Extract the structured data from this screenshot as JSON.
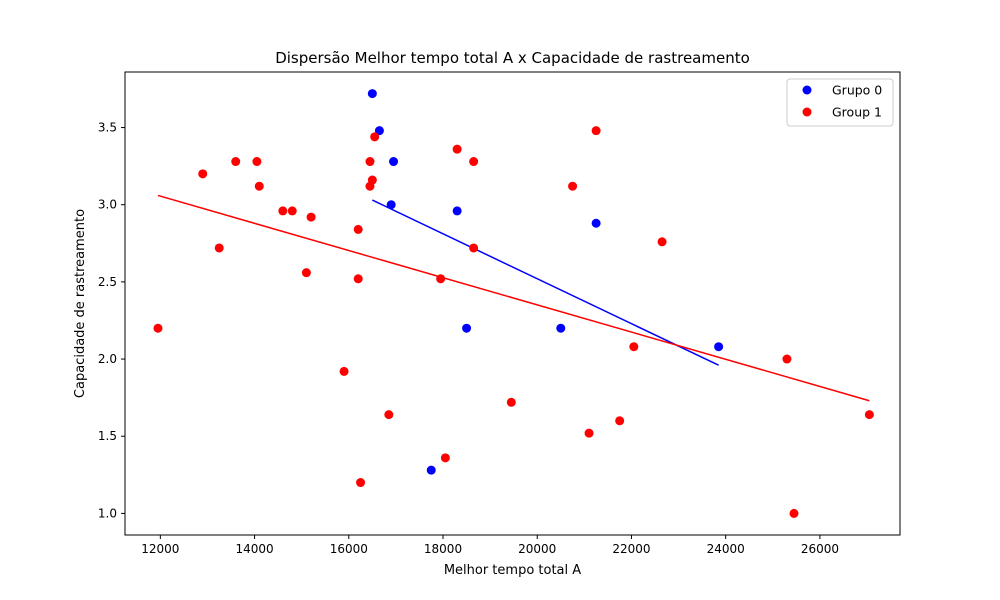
{
  "chart_data": {
    "type": "scatter",
    "title": "Dispersão Melhor tempo total A x Capacidade de rastreamento",
    "xlabel": "Melhor tempo total A",
    "ylabel": "Capacidade de rastreamento",
    "xlim": [
      11250,
      27700
    ],
    "ylim": [
      0.86,
      3.86
    ],
    "xticks": [
      12000,
      14000,
      16000,
      18000,
      20000,
      22000,
      24000,
      26000
    ],
    "yticks": [
      1.0,
      1.5,
      2.0,
      2.5,
      3.0,
      3.5
    ],
    "ytick_labels": [
      "1.0",
      "1.5",
      "2.0",
      "2.5",
      "3.0",
      "3.5"
    ],
    "grid": false,
    "legend_position": "top-right",
    "series": [
      {
        "name": "Grupo 0",
        "color": "#0000ff",
        "points": [
          [
            16500,
            3.72
          ],
          [
            16650,
            3.48
          ],
          [
            16950,
            3.28
          ],
          [
            16900,
            3.0
          ],
          [
            18300,
            2.96
          ],
          [
            21250,
            2.88
          ],
          [
            18500,
            2.2
          ],
          [
            20500,
            2.2
          ],
          [
            23850,
            2.08
          ],
          [
            17750,
            1.28
          ]
        ],
        "trend": [
          [
            16500,
            3.03
          ],
          [
            23850,
            1.96
          ]
        ]
      },
      {
        "name": "Group 1",
        "color": "#ff0000",
        "points": [
          [
            11950,
            2.2
          ],
          [
            12900,
            3.2
          ],
          [
            13250,
            2.72
          ],
          [
            13600,
            3.28
          ],
          [
            14050,
            3.28
          ],
          [
            14100,
            3.12
          ],
          [
            14600,
            2.96
          ],
          [
            14800,
            2.96
          ],
          [
            15100,
            2.56
          ],
          [
            15200,
            2.92
          ],
          [
            15900,
            1.92
          ],
          [
            16200,
            2.84
          ],
          [
            16200,
            2.52
          ],
          [
            16250,
            1.2
          ],
          [
            16450,
            3.12
          ],
          [
            16450,
            3.28
          ],
          [
            16500,
            3.16
          ],
          [
            16550,
            3.44
          ],
          [
            16850,
            1.64
          ],
          [
            17950,
            2.52
          ],
          [
            18050,
            1.36
          ],
          [
            18300,
            3.36
          ],
          [
            18650,
            3.28
          ],
          [
            18650,
            2.72
          ],
          [
            19450,
            1.72
          ],
          [
            20750,
            3.12
          ],
          [
            21100,
            1.52
          ],
          [
            21250,
            3.48
          ],
          [
            21750,
            1.6
          ],
          [
            22050,
            2.08
          ],
          [
            22650,
            2.76
          ],
          [
            25300,
            2.0
          ],
          [
            25450,
            1.0
          ],
          [
            27050,
            1.64
          ]
        ],
        "trend": [
          [
            11950,
            3.06
          ],
          [
            27050,
            1.73
          ]
        ]
      }
    ]
  }
}
